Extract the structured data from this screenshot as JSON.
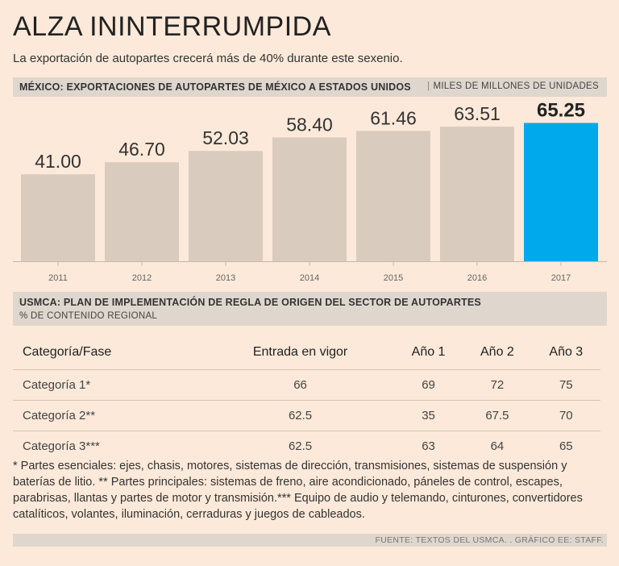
{
  "header": {
    "title": "ALZA ININTERRUMPIDA",
    "subtitle": "La exportación de autopartes crecerá más de 40% durante este sexenio."
  },
  "section1": {
    "heading": "MÉXICO: EXPORTACIONES DE AUTOPARTES DE MÉXICO A ESTADOS UNIDOS",
    "separator": "|",
    "unit": "MILES DE MILLONES DE UNIDADES"
  },
  "chart_data": {
    "type": "bar",
    "title": "MÉXICO: EXPORTACIONES DE AUTOPARTES DE MÉXICO A ESTADOS UNIDOS",
    "ylabel": "MILES DE MILLONES DE UNIDADES",
    "xlabel": "",
    "categories": [
      "2011",
      "2012",
      "2013",
      "2014",
      "2015",
      "2016",
      "2017"
    ],
    "values": [
      41.0,
      46.7,
      52.03,
      58.4,
      61.46,
      63.51,
      65.25
    ],
    "data_labels": [
      "41.00",
      "46.70",
      "52.03",
      "58.40",
      "61.46",
      "63.51",
      "65.25"
    ],
    "highlight_index": 6,
    "ylim": [
      0,
      70
    ],
    "grid": false,
    "colors": {
      "bar": "#d9cbbd",
      "highlight": "#00a9ec",
      "label": "#333333",
      "axis": "#c8b8a8",
      "tick": "#666666"
    }
  },
  "section2": {
    "heading": "USMCA: PLAN DE IMPLEMENTACIÓN DE REGLA DE ORIGEN DEL SECTOR DE AUTOPARTES",
    "subheading": "% DE CONTENIDO REGIONAL"
  },
  "table": {
    "headers": [
      "Categoría/Fase",
      "Entrada en vigor",
      "Año 1",
      "Año 2",
      "Año 3"
    ],
    "rows": [
      [
        "Categoría 1*",
        "66",
        "69",
        "72",
        "75"
      ],
      [
        "Categoría 2**",
        "62.5",
        "35",
        "67.5",
        "70"
      ],
      [
        "Categoría 3***",
        "62.5",
        "63",
        "64",
        "65"
      ]
    ]
  },
  "notes": "* Partes esenciales: ejes, chasis, motores, sistemas de dirección, transmisiones, sistemas de suspensión y baterías de litio. ** Partes principales: sistemas de freno, aire acondicionado, páneles de control, escapes, parabrisas, llantas y partes de motor y transmisión.*** Equipo de audio y telemando, cinturones, convertidores catalíticos, volantes, iluminación, cerraduras y juegos de cableados.",
  "footer": "FUENTE: TEXTOS DEL USMCA. . GRÁFICO EE: STAFF."
}
